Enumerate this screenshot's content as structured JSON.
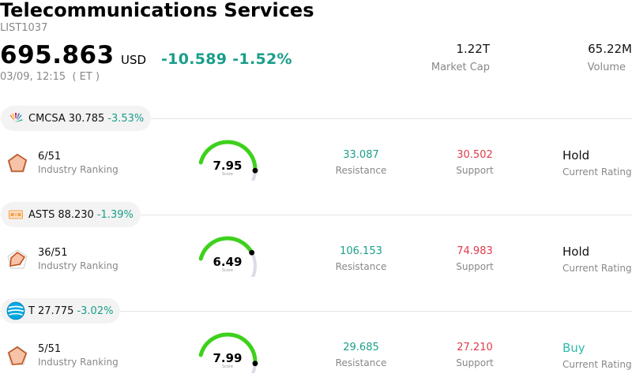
{
  "header": {
    "title": "Telecommunications Services",
    "code": "LIST1037",
    "price": "695.863",
    "currency": "USD",
    "change": "-10.589",
    "change_pct": "-1.52%",
    "timestamp": "03/09, 12:15  ( ET )",
    "market_cap_value": "1.22T",
    "market_cap_label": "Market Cap",
    "volume_value": "65.22M",
    "volume_label": "Volume"
  },
  "colors": {
    "up_green": "#1a9e89",
    "down_red": "#e03b4b",
    "gauge_green": "#3dd11c",
    "buy_teal": "#2fb9b0"
  },
  "stocks": [
    {
      "ticker": "CMCSA",
      "price": "30.785",
      "change_pct": "-3.53%",
      "logo_icon": "nbc-peacock-icon",
      "rank": "6/51",
      "rank_label": "Industry Ranking",
      "score": "7.95",
      "score_label": "Score",
      "score_fraction": 0.795,
      "resistance": "33.087",
      "resistance_label": "Resistance",
      "support": "30.502",
      "support_label": "Support",
      "rating": "Hold",
      "rating_label": "Current Rating"
    },
    {
      "ticker": "ASTS",
      "price": "88.230",
      "change_pct": "-1.39%",
      "logo_icon": "ast-spacemobile-icon",
      "rank": "36/51",
      "rank_label": "Industry Ranking",
      "score": "6.49",
      "score_label": "Score",
      "score_fraction": 0.649,
      "resistance": "106.153",
      "resistance_label": "Resistance",
      "support": "74.983",
      "support_label": "Support",
      "rating": "Hold",
      "rating_label": "Current Rating"
    },
    {
      "ticker": "T",
      "price": "27.775",
      "change_pct": "-3.02%",
      "logo_icon": "att-globe-icon",
      "rank": "5/51",
      "rank_label": "Industry Ranking",
      "score": "7.99",
      "score_label": "Score",
      "score_fraction": 0.799,
      "resistance": "29.685",
      "resistance_label": "Resistance",
      "support": "27.210",
      "support_label": "Support",
      "rating": "Buy",
      "rating_label": "Current Rating"
    }
  ]
}
